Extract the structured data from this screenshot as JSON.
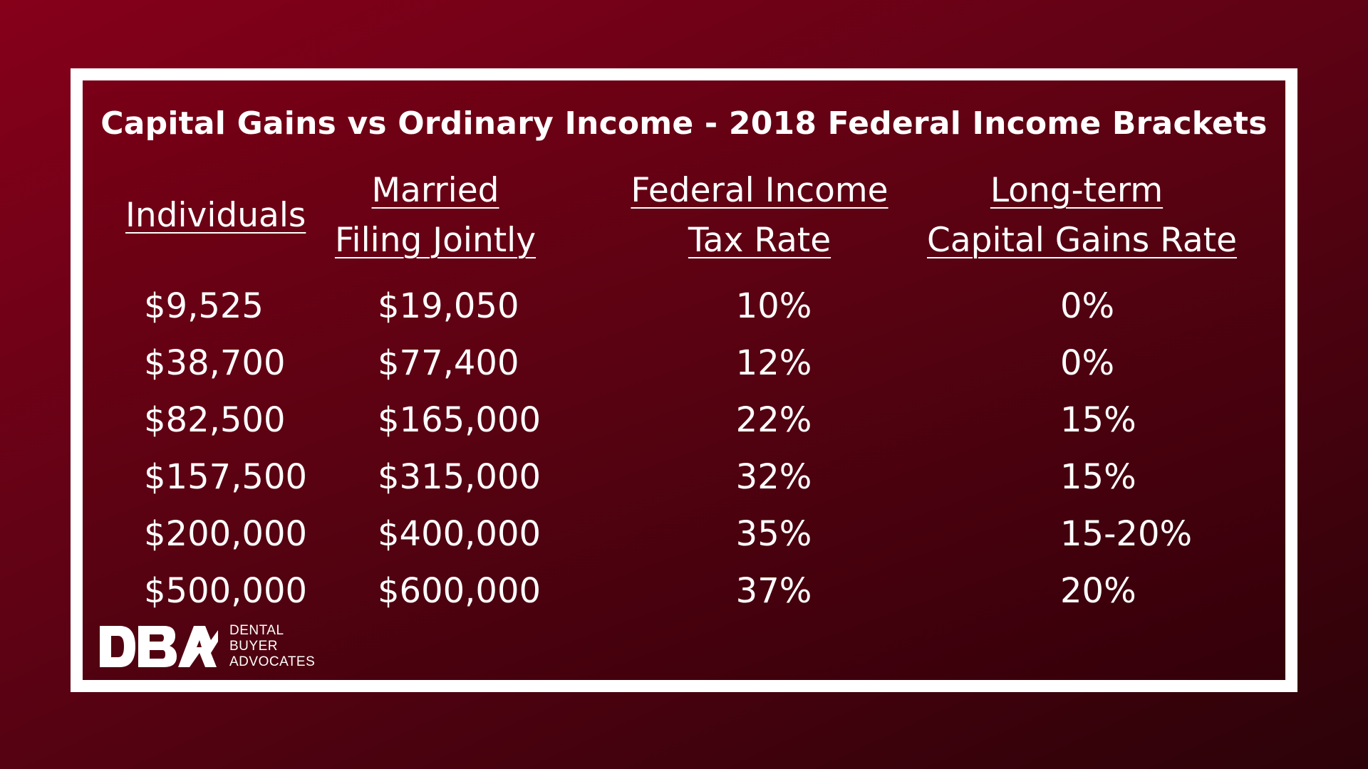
{
  "title": "Capital Gains vs Ordinary Income - 2018 Federal Income Brackets",
  "headers": {
    "individuals": "Individuals",
    "married_line1": "Married",
    "married_line2": "Filing Jointly",
    "federal_line1": "Federal Income",
    "federal_line2": "Tax Rate",
    "capital_line1": "Long-term",
    "capital_line2": "Capital Gains Rate"
  },
  "rows": [
    {
      "individuals": "$9,525",
      "married": "$19,050",
      "federal_rate": "10%",
      "capital_rate": "0%"
    },
    {
      "individuals": "$38,700",
      "married": "$77,400",
      "federal_rate": "12%",
      "capital_rate": "0%"
    },
    {
      "individuals": "$82,500",
      "married": "$165,000",
      "federal_rate": "22%",
      "capital_rate": "15%"
    },
    {
      "individuals": "$157,500",
      "married": "$315,000",
      "federal_rate": "32%",
      "capital_rate": "15%"
    },
    {
      "individuals": "$200,000",
      "married": "$400,000",
      "federal_rate": "35%",
      "capital_rate": "15-20%"
    },
    {
      "individuals": "$500,000",
      "married": "$600,000",
      "federal_rate": "37%",
      "capital_rate": "20%"
    }
  ],
  "logo": {
    "mark": "DBA",
    "line1": "DENTAL",
    "line2": "BUYER",
    "line3": "ADVOCATES"
  },
  "colors": {
    "background": "#6e0015",
    "frame": "#ffffff",
    "text": "#ffffff"
  }
}
